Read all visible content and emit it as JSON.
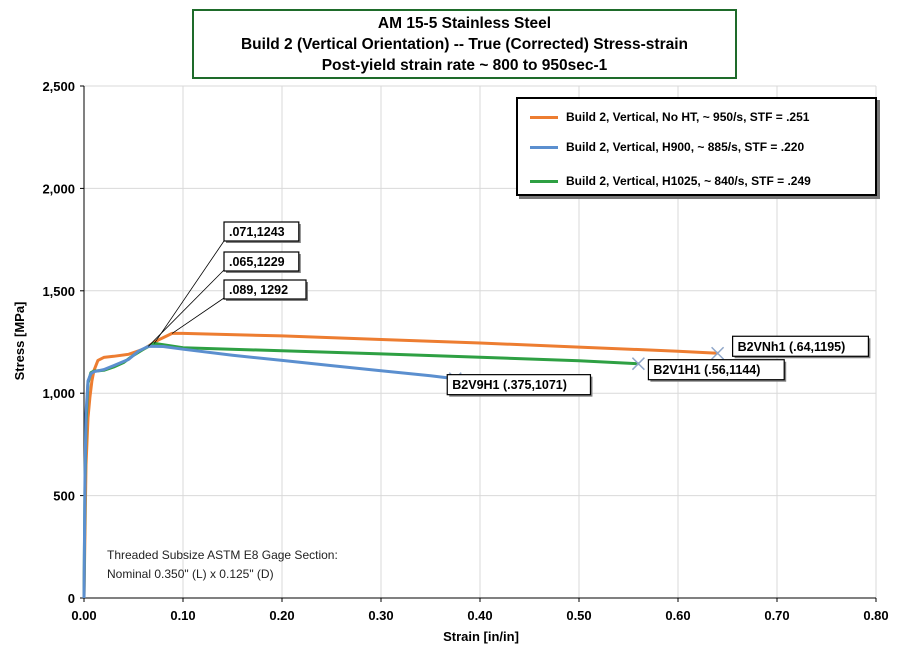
{
  "chart_data": {
    "type": "line",
    "title": [
      "AM 15-5 Stainless Steel",
      "Build 2 (Vertical Orientation) -- True (Corrected) Stress-strain",
      "Post-yield strain rate ~ 800 to 950sec-1"
    ],
    "xlabel": "Strain [in/in]",
    "ylabel": "Stress [MPa]",
    "xlim": [
      0,
      0.8
    ],
    "ylim": [
      0,
      2500
    ],
    "x_ticks": [
      {
        "value": 0,
        "label": "0.00"
      },
      {
        "value": 0.1,
        "label": "0.10"
      },
      {
        "value": 0.2,
        "label": "0.20"
      },
      {
        "value": 0.3,
        "label": "0.30"
      },
      {
        "value": 0.4,
        "label": "0.40"
      },
      {
        "value": 0.5,
        "label": "0.50"
      },
      {
        "value": 0.6,
        "label": "0.60"
      },
      {
        "value": 0.7,
        "label": "0.70"
      },
      {
        "value": 0.8,
        "label": "0.80"
      }
    ],
    "y_ticks": [
      {
        "value": 0,
        "label": "0"
      },
      {
        "value": 500,
        "label": "500"
      },
      {
        "value": 1000,
        "label": "1,000"
      },
      {
        "value": 1500,
        "label": "1,500"
      },
      {
        "value": 2000,
        "label": "2,000"
      },
      {
        "value": 2500,
        "label": "2,500"
      }
    ],
    "grid": true,
    "legend_position": "top-right",
    "series": [
      {
        "name": "Build 2, Vertical, No HT, ~ 950/s, STF = .251",
        "color": "#ED7D31",
        "points": [
          [
            0,
            0
          ],
          [
            0.002,
            650
          ],
          [
            0.004,
            880
          ],
          [
            0.006,
            980
          ],
          [
            0.008,
            1060
          ],
          [
            0.01,
            1110
          ],
          [
            0.014,
            1160
          ],
          [
            0.02,
            1175
          ],
          [
            0.03,
            1180
          ],
          [
            0.045,
            1190
          ],
          [
            0.06,
            1215
          ],
          [
            0.075,
            1260
          ],
          [
            0.089,
            1292
          ],
          [
            0.1,
            1292
          ],
          [
            0.2,
            1280
          ],
          [
            0.3,
            1262
          ],
          [
            0.4,
            1245
          ],
          [
            0.5,
            1225
          ],
          [
            0.6,
            1205
          ],
          [
            0.64,
            1195
          ]
        ],
        "end_point": [
          0.64,
          1195
        ],
        "end_label": "B2VNh1 (.64,1195)"
      },
      {
        "name": "Build 2, Vertical, H900,  ~ 885/s, STF = .220",
        "color": "#5B8FCF",
        "points": [
          [
            0,
            0
          ],
          [
            0.001,
            600
          ],
          [
            0.002,
            900
          ],
          [
            0.004,
            1060
          ],
          [
            0.007,
            1095
          ],
          [
            0.01,
            1105
          ],
          [
            0.02,
            1115
          ],
          [
            0.03,
            1135
          ],
          [
            0.045,
            1165
          ],
          [
            0.055,
            1205
          ],
          [
            0.065,
            1229
          ],
          [
            0.08,
            1228
          ],
          [
            0.1,
            1215
          ],
          [
            0.15,
            1185
          ],
          [
            0.2,
            1160
          ],
          [
            0.25,
            1135
          ],
          [
            0.3,
            1110
          ],
          [
            0.35,
            1085
          ],
          [
            0.375,
            1071
          ]
        ],
        "end_point": [
          0.375,
          1071
        ],
        "end_label": "B2V9H1 (.375,1071)"
      },
      {
        "name": "Build 2, Vertical, H1025,  ~ 840/s, STF = .249",
        "color": "#2EA043",
        "points": [
          [
            0,
            0
          ],
          [
            0.001,
            550
          ],
          [
            0.002,
            850
          ],
          [
            0.004,
            1050
          ],
          [
            0.007,
            1100
          ],
          [
            0.01,
            1108
          ],
          [
            0.015,
            1110
          ],
          [
            0.02,
            1112
          ],
          [
            0.03,
            1128
          ],
          [
            0.04,
            1150
          ],
          [
            0.05,
            1185
          ],
          [
            0.06,
            1215
          ],
          [
            0.071,
            1243
          ],
          [
            0.1,
            1222
          ],
          [
            0.2,
            1207
          ],
          [
            0.3,
            1192
          ],
          [
            0.4,
            1176
          ],
          [
            0.5,
            1158
          ],
          [
            0.56,
            1144
          ]
        ],
        "end_point": [
          0.56,
          1144
        ],
        "end_label": "B2V1H1 (.56,1144)"
      }
    ],
    "annotations": [
      {
        "text": ".071,1243",
        "point": [
          0.071,
          1243
        ]
      },
      {
        "text": ".065,1229",
        "point": [
          0.065,
          1229
        ]
      },
      {
        "text": ".089, 1292",
        "point": [
          0.089,
          1292
        ]
      }
    ],
    "note": [
      "Threaded Subsize ASTM E8 Gage Section:",
      "Nominal 0.350\" (L) x 0.125\" (D)"
    ]
  }
}
